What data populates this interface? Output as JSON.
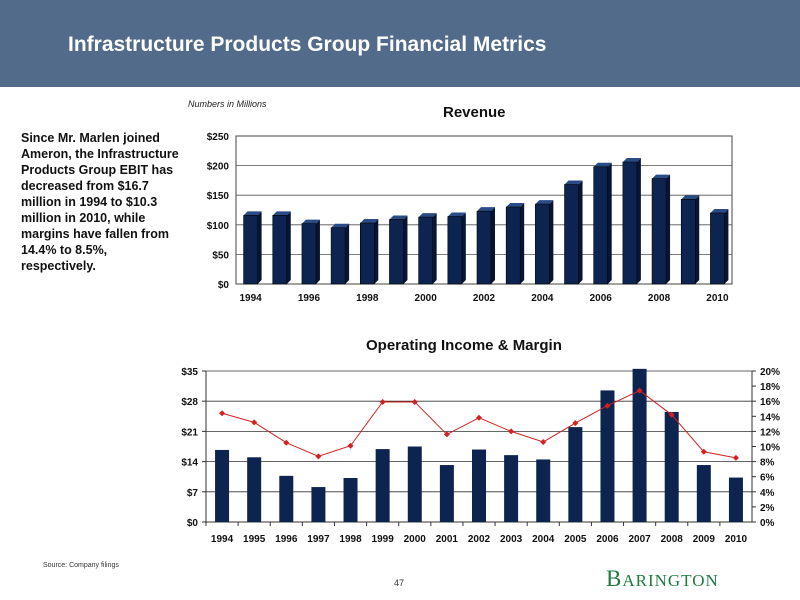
{
  "header": {
    "title": "Infrastructure Products Group Financial Metrics"
  },
  "units_note": "Numbers in Millions",
  "sidebar": {
    "text": "Since Mr. Marlen joined Ameron, the Infrastructure Products Group EBIT has decreased from $16.7 million in 1994 to $10.3 million in 2010, while margins have fallen from 14.4% to 8.5%, respectively."
  },
  "footer": {
    "source": "Source:  Company  filings",
    "page_number": "47",
    "logo_initial": "B",
    "logo_rest": "ARINGTON"
  },
  "colors": {
    "header_bg": "#526b8a",
    "bar_fill": "#0d2451",
    "bar_side": "#061533",
    "line": "#d42020",
    "logo": "#1e7a3e"
  },
  "chart_data": [
    {
      "type": "bar",
      "title": "Revenue",
      "categories": [
        "1994",
        "1995",
        "1996",
        "1997",
        "1998",
        "1999",
        "2000",
        "2001",
        "2002",
        "2003",
        "2004",
        "2005",
        "2006",
        "2007",
        "2008",
        "2009",
        "2010"
      ],
      "x_tick_labels": [
        "1994",
        "1996",
        "1998",
        "2000",
        "2002",
        "2004",
        "2006",
        "2008",
        "2010"
      ],
      "values": [
        116,
        116,
        102,
        95,
        103,
        109,
        113,
        114,
        123,
        130,
        135,
        168,
        198,
        206,
        178,
        143,
        120
      ],
      "ylim": [
        0,
        250
      ],
      "y_ticks": [
        0,
        50,
        100,
        150,
        200,
        250
      ],
      "y_tick_labels": [
        "$0",
        "$50",
        "$100",
        "$150",
        "$200",
        "$250"
      ],
      "grid": true
    },
    {
      "type": "bar+line",
      "title": "Operating Income & Margin",
      "categories": [
        "1994",
        "1995",
        "1996",
        "1997",
        "1998",
        "1999",
        "2000",
        "2001",
        "2002",
        "2003",
        "2004",
        "2005",
        "2006",
        "2007",
        "2008",
        "2009",
        "2010"
      ],
      "series": [
        {
          "name": "Operating Income",
          "type": "bar",
          "axis": "left",
          "values": [
            16.7,
            15.0,
            10.7,
            8.1,
            10.2,
            16.9,
            17.5,
            13.2,
            16.8,
            15.5,
            14.5,
            22.0,
            30.5,
            35.5,
            25.5,
            13.2,
            10.3
          ]
        },
        {
          "name": "Margin",
          "type": "line",
          "axis": "right",
          "values": [
            14.4,
            13.2,
            10.5,
            8.7,
            10.1,
            15.9,
            15.9,
            11.6,
            13.8,
            12.0,
            10.6,
            13.1,
            15.4,
            17.4,
            14.2,
            9.3,
            8.5
          ]
        }
      ],
      "ylim_left": [
        0,
        35
      ],
      "y_ticks_left": [
        0,
        7,
        14,
        21,
        28,
        35
      ],
      "y_tick_labels_left": [
        "$0",
        "$7",
        "$14",
        "$21",
        "$28",
        "$35"
      ],
      "ylim_right": [
        0,
        20
      ],
      "y_ticks_right": [
        0,
        2,
        4,
        6,
        8,
        10,
        12,
        14,
        16,
        18,
        20
      ],
      "y_tick_labels_right": [
        "0%",
        "2%",
        "4%",
        "6%",
        "8%",
        "10%",
        "12%",
        "14%",
        "16%",
        "18%",
        "20%"
      ],
      "grid": true
    }
  ]
}
